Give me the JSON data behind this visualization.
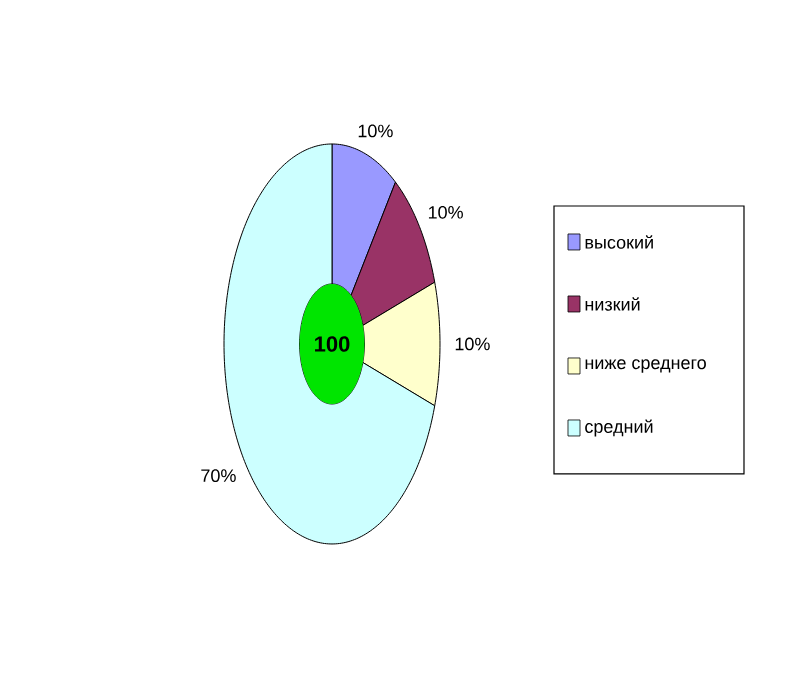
{
  "chart_data": {
    "type": "donut",
    "categories": [
      "высокий",
      "низкий",
      "ниже среднего",
      "средний"
    ],
    "values": [
      10,
      10,
      10,
      70
    ],
    "value_labels": [
      "10%",
      "10%",
      "10%",
      "70%"
    ],
    "colors": [
      "#9999ff",
      "#993366",
      "#ffffcc",
      "#ccffff"
    ],
    "annotations": [
      "100"
    ],
    "legend": "right"
  }
}
